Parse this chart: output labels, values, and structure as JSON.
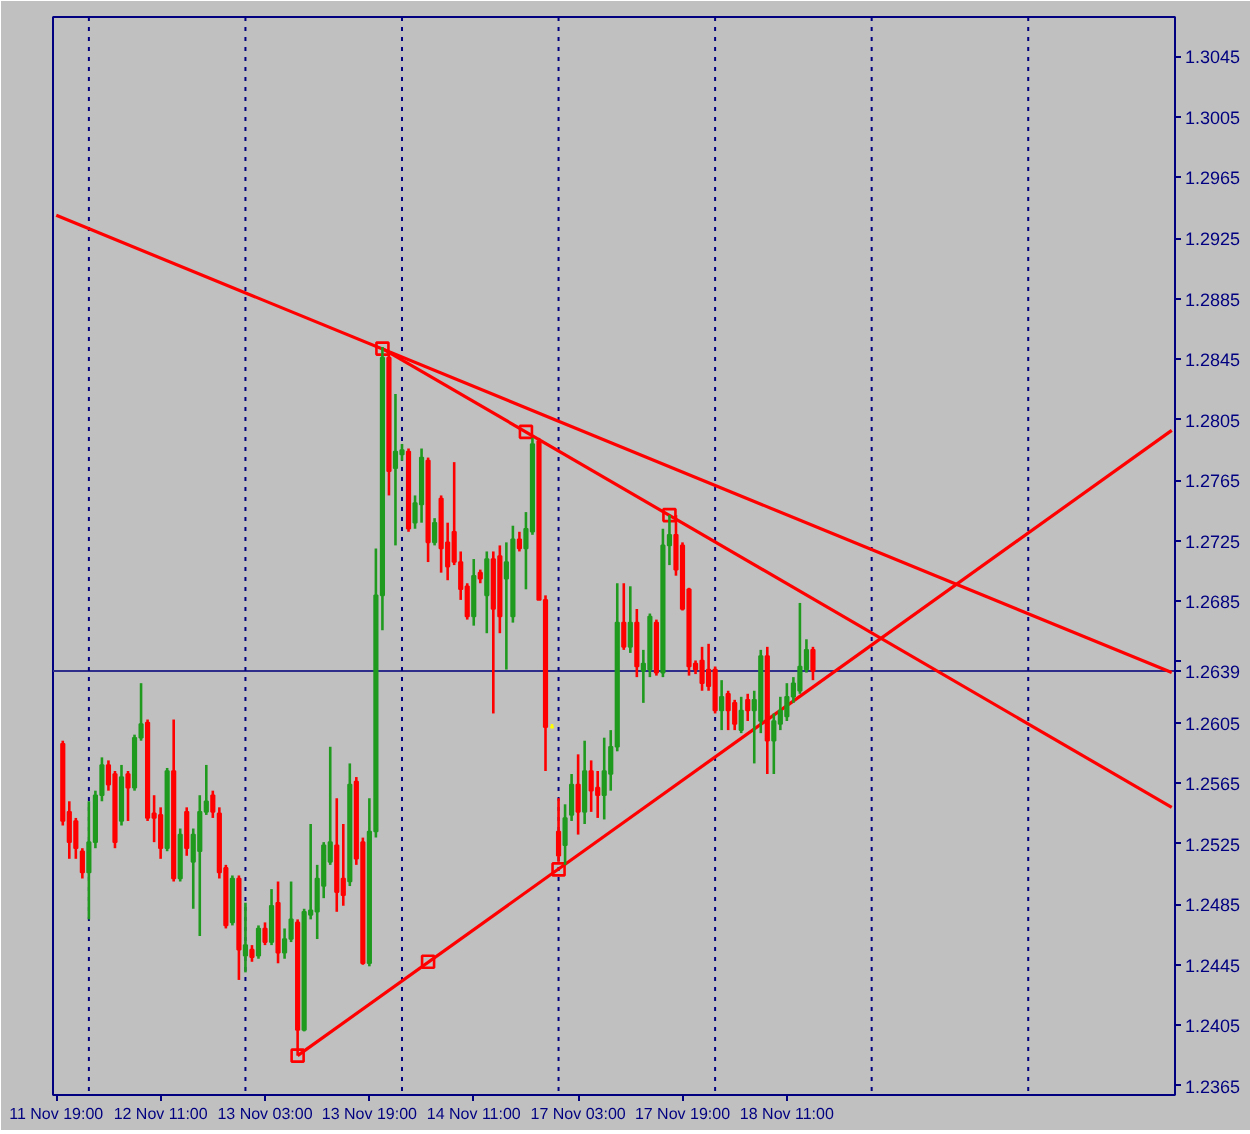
{
  "chart_data": {
    "type": "candlestick",
    "categories": [
      "11 Nov 19:00",
      null,
      null,
      null,
      null,
      null,
      null,
      null,
      null,
      null,
      null,
      null,
      null,
      null,
      null,
      null,
      "12 Nov 11:00",
      null,
      null,
      null,
      null,
      null,
      null,
      null,
      null,
      null,
      null,
      null,
      null,
      null,
      null,
      null,
      "13 Nov 03:00",
      null,
      null,
      null,
      null,
      null,
      null,
      null,
      null,
      null,
      null,
      null,
      null,
      null,
      null,
      null,
      "13 Nov 19:00",
      null,
      null,
      null,
      null,
      null,
      null,
      null,
      null,
      null,
      null,
      null,
      null,
      null,
      null,
      null,
      "14 Nov 11:00",
      null,
      null,
      null,
      null,
      null,
      null,
      null,
      null,
      null,
      null,
      null,
      null,
      null,
      null,
      null,
      "17 Nov 03:00",
      null,
      null,
      null,
      null,
      null,
      null,
      null,
      null,
      null,
      null,
      null,
      null,
      null,
      null,
      null,
      "17 Nov 19:00",
      null,
      null,
      null,
      null,
      null,
      null,
      null,
      null,
      null,
      null,
      null,
      null,
      null,
      null,
      null,
      "18 Nov 11:00",
      null,
      null,
      null,
      null,
      null,
      null,
      null,
      null,
      null,
      null,
      null,
      null,
      null,
      null,
      null,
      null,
      null,
      null,
      null,
      null,
      null,
      null,
      null,
      null,
      null,
      null,
      null,
      null,
      null,
      null,
      null,
      null,
      null,
      null,
      null,
      null,
      null,
      null,
      null,
      null,
      null,
      null,
      null,
      null,
      null,
      null,
      null,
      null,
      null,
      null,
      null,
      null,
      null,
      null,
      null,
      null,
      null,
      null,
      null
    ],
    "ohlc": [
      null,
      [
        1.2591,
        1.2593,
        1.2537,
        1.254
      ],
      [
        1.2546,
        1.2553,
        1.2515,
        1.2526
      ],
      [
        1.254,
        1.2542,
        1.2515,
        1.2522
      ],
      [
        1.252,
        1.2522,
        1.2502,
        1.2506
      ],
      [
        1.2506,
        1.2553,
        1.2475,
        1.2526
      ],
      [
        1.2526,
        1.256,
        1.2522,
        1.2557
      ],
      [
        1.2557,
        1.2582,
        1.2553,
        1.2577
      ],
      [
        1.2577,
        1.258,
        1.256,
        1.2564
      ],
      [
        1.2571,
        1.2573,
        1.2522,
        1.2526
      ],
      [
        1.254,
        1.2577,
        1.2537,
        1.2569
      ],
      [
        1.2571,
        1.2573,
        1.254,
        1.2562
      ],
      [
        1.2562,
        1.2597,
        1.256,
        1.2595
      ],
      [
        1.2595,
        1.2631,
        1.2593,
        1.2604
      ],
      [
        1.2605,
        1.2607,
        1.254,
        1.2542
      ],
      [
        1.2545,
        1.2557,
        1.2526,
        1.2542
      ],
      [
        1.2544,
        1.2549,
        1.2515,
        1.2522
      ],
      [
        1.2522,
        1.2575,
        1.252,
        1.2573
      ],
      [
        1.2573,
        1.2607,
        1.25,
        1.2502
      ],
      [
        1.2502,
        1.2535,
        1.25,
        1.2531
      ],
      [
        1.2546,
        1.2549,
        1.2517,
        1.2522
      ],
      [
        1.2513,
        1.2535,
        1.2482,
        1.2531
      ],
      [
        1.252,
        1.2557,
        1.2464,
        1.2546
      ],
      [
        1.2546,
        1.2577,
        1.2544,
        1.2553
      ],
      [
        1.2557,
        1.256,
        1.2542,
        1.2546
      ],
      [
        1.2545,
        1.2549,
        1.2502,
        1.2506
      ],
      [
        1.2509,
        1.2511,
        1.2469,
        1.2471
      ],
      [
        1.2473,
        1.2504,
        1.2471,
        1.2502
      ],
      [
        1.2502,
        1.2504,
        1.2435,
        1.2455
      ],
      [
        1.2451,
        1.2486,
        1.244,
        1.2458
      ],
      [
        1.2455,
        1.2458,
        1.2447,
        1.245
      ],
      [
        1.2451,
        1.2471,
        1.2449,
        1.2469
      ],
      [
        1.2469,
        1.2473,
        1.2458,
        1.246
      ],
      [
        1.246,
        1.2495,
        1.2458,
        1.2484
      ],
      [
        1.2486,
        1.25,
        1.2446,
        1.2453
      ],
      [
        1.2453,
        1.2469,
        1.2449,
        1.2462
      ],
      [
        1.2462,
        1.25,
        1.246,
        1.2475
      ],
      [
        1.2473,
        1.2475,
        1.2385,
        1.2402
      ],
      [
        1.2402,
        1.2482,
        1.2401,
        1.248
      ],
      [
        1.2478,
        1.2538,
        1.2475,
        1.2481
      ],
      [
        1.248,
        1.2511,
        1.2462,
        1.2502
      ],
      [
        1.2497,
        1.2526,
        1.2489,
        1.2524
      ],
      [
        1.2513,
        1.2589,
        1.2511,
        1.2526
      ],
      [
        1.2524,
        1.2555,
        1.248,
        1.2493
      ],
      [
        1.2502,
        1.2538,
        1.2484,
        1.2491
      ],
      [
        1.25,
        1.2578,
        1.2497,
        1.2564
      ],
      [
        1.2566,
        1.2569,
        1.2511,
        1.2515
      ],
      [
        1.2526,
        1.2529,
        1.2445,
        1.2446
      ],
      [
        1.2446,
        1.2555,
        1.2444,
        1.2533
      ],
      [
        1.2533,
        1.272,
        1.2529,
        1.2689
      ],
      [
        1.2689,
        1.2853,
        1.2666,
        1.2846
      ],
      [
        1.2846,
        1.2849,
        1.2755,
        1.2771
      ],
      [
        1.2773,
        1.2822,
        1.2722,
        1.2784
      ],
      [
        1.2782,
        1.2789,
        1.2778,
        1.2785
      ],
      [
        1.2784,
        1.2786,
        1.2731,
        1.2733
      ],
      [
        1.2737,
        1.2755,
        1.2733,
        1.275
      ],
      [
        1.2749,
        1.2786,
        1.2737,
        1.278
      ],
      [
        1.2778,
        1.278,
        1.2711,
        1.2724
      ],
      [
        1.2724,
        1.274,
        1.2722,
        1.2737
      ],
      [
        1.2753,
        1.2755,
        1.2704,
        1.272
      ],
      [
        1.2724,
        1.2737,
        1.2699,
        1.2708
      ],
      [
        1.2731,
        1.2777,
        1.2709,
        1.2711
      ],
      [
        1.2711,
        1.2718,
        1.2686,
        1.2693
      ],
      [
        1.2695,
        1.2697,
        1.2673,
        1.2675
      ],
      [
        1.2675,
        1.2713,
        1.2669,
        1.2702
      ],
      [
        1.2704,
        1.2706,
        1.2697,
        1.27
      ],
      [
        1.2689,
        1.2718,
        1.2664,
        1.2713
      ],
      [
        1.2713,
        1.2718,
        1.2611,
        1.268
      ],
      [
        1.2715,
        1.2722,
        1.2664,
        1.2675
      ],
      [
        1.27,
        1.2724,
        1.264,
        1.2711
      ],
      [
        1.2675,
        1.2735,
        1.2671,
        1.2726
      ],
      [
        1.2726,
        1.2731,
        1.2718,
        1.272
      ],
      [
        1.272,
        1.2744,
        1.2693,
        1.2733
      ],
      [
        1.2731,
        1.2793,
        1.2729,
        1.2789
      ],
      [
        1.2791,
        1.2793,
        1.2686,
        1.2686
      ],
      [
        1.2686,
        1.2689,
        1.2573,
        1.2602
      ],
      [
        1.2602,
        1.2604,
        1.2601,
        1.2602
      ],
      [
        1.2533,
        1.2555,
        1.2513,
        1.2517
      ],
      [
        1.2524,
        1.2551,
        1.2511,
        1.2542
      ],
      [
        1.2544,
        1.2571,
        1.254,
        1.2564
      ],
      [
        1.2564,
        1.2584,
        1.2531,
        1.2546
      ],
      [
        1.2546,
        1.2593,
        1.2538,
        1.2573
      ],
      [
        1.2573,
        1.258,
        1.2546,
        1.256
      ],
      [
        1.2562,
        1.2573,
        1.2542,
        1.2557
      ],
      [
        1.2557,
        1.2595,
        1.2541,
        1.2573
      ],
      [
        1.2571,
        1.26,
        1.256,
        1.2589
      ],
      [
        1.2589,
        1.2697,
        1.2586,
        1.2671
      ],
      [
        1.2671,
        1.2697,
        1.2653,
        1.2655
      ],
      [
        1.2655,
        1.2695,
        1.2651,
        1.2671
      ],
      [
        1.2671,
        1.268,
        1.2635,
        1.2642
      ],
      [
        1.2639,
        1.2653,
        1.2618,
        1.2644
      ],
      [
        1.264,
        1.2677,
        1.2635,
        1.2675
      ],
      [
        1.2671,
        1.2673,
        1.2636,
        1.2638
      ],
      [
        1.2638,
        1.2733,
        1.2635,
        1.2722
      ],
      [
        1.2722,
        1.2742,
        1.2709,
        1.2729
      ],
      [
        1.2729,
        1.2742,
        1.2702,
        1.2706
      ],
      [
        1.2722,
        1.2724,
        1.2679,
        1.268
      ],
      [
        1.2693,
        1.2694,
        1.2636,
        1.2642
      ],
      [
        1.2644,
        1.2646,
        1.2637,
        1.264
      ],
      [
        1.2646,
        1.2655,
        1.2626,
        1.2631
      ],
      [
        1.264,
        1.2657,
        1.2626,
        1.2629
      ],
      [
        1.264,
        1.2642,
        1.2611,
        1.2613
      ],
      [
        1.2613,
        1.2633,
        1.26,
        1.2622
      ],
      [
        1.2624,
        1.2626,
        1.26,
        1.2613
      ],
      [
        1.2618,
        1.262,
        1.26,
        1.2604
      ],
      [
        1.26,
        1.2622,
        1.2598,
        1.2613
      ],
      [
        1.262,
        1.2624,
        1.2606,
        1.2613
      ],
      [
        1.2613,
        1.2626,
        1.2578,
        1.262
      ],
      [
        1.2606,
        1.2653,
        1.2598,
        1.2649
      ],
      [
        1.2649,
        1.2655,
        1.2571,
        1.2593
      ],
      [
        1.2593,
        1.2611,
        1.2571,
        1.2606
      ],
      [
        1.2604,
        1.2622,
        1.26,
        1.2613
      ],
      [
        1.2609,
        1.2631,
        1.2606,
        1.2622
      ],
      [
        1.2622,
        1.2635,
        1.2618,
        1.2631
      ],
      [
        1.2626,
        1.2684,
        1.2624,
        1.2642
      ],
      [
        1.264,
        1.266,
        1.2638,
        1.2653
      ],
      [
        1.2653,
        1.2655,
        1.2633,
        1.2639
      ],
      null,
      null,
      null,
      null,
      null,
      null,
      null,
      null,
      null,
      null,
      null,
      null,
      null,
      null,
      null,
      null,
      null,
      null,
      null,
      null,
      null,
      null,
      null,
      null,
      null,
      null,
      null,
      null,
      null,
      null,
      null,
      null,
      null,
      null,
      null,
      null,
      null,
      null,
      null,
      null,
      null,
      null,
      null,
      null,
      null,
      null,
      null,
      null,
      null,
      null,
      null,
      null,
      null,
      null,
      null
    ],
    "colors": [
      null,
      "#ff0000",
      "#ff0000",
      "#ff0000",
      "#ff0000",
      "#1f9a1f",
      "#1f9a1f",
      "#1f9a1f",
      "#ff0000",
      "#ff0000",
      "#1f9a1f",
      "#ff0000",
      "#1f9a1f",
      "#1f9a1f",
      "#ff0000",
      "#ff0000",
      "#ff0000",
      "#1f9a1f",
      "#ff0000",
      "#1f9a1f",
      "#ff0000",
      "#1f9a1f",
      "#1f9a1f",
      "#1f9a1f",
      "#ff0000",
      "#ff0000",
      "#ff0000",
      "#1f9a1f",
      "#ff0000",
      "#1f9a1f",
      "#ff0000",
      "#1f9a1f",
      "#ff0000",
      "#1f9a1f",
      "#ff0000",
      "#1f9a1f",
      "#1f9a1f",
      "#ff0000",
      "#1f9a1f",
      "#1f9a1f",
      "#1f9a1f",
      "#1f9a1f",
      "#1f9a1f",
      "#ff0000",
      "#ff0000",
      "#1f9a1f",
      "#ff0000",
      "#ff0000",
      "#1f9a1f",
      "#1f9a1f",
      "#1f9a1f",
      "#ff0000",
      "#1f9a1f",
      "#1f9a1f",
      "#ff0000",
      "#1f9a1f",
      "#1f9a1f",
      "#ff0000",
      "#1f9a1f",
      "#ff0000",
      "#ff0000",
      "#ff0000",
      "#ff0000",
      "#ff0000",
      "#1f9a1f",
      "#ff0000",
      "#1f9a1f",
      "#ff0000",
      "#ff0000",
      "#1f9a1f",
      "#1f9a1f",
      "#ff0000",
      "#1f9a1f",
      "#1f9a1f",
      "#ff0000",
      "#ff0000",
      "#ffff00",
      "#ff0000",
      "#1f9a1f",
      "#1f9a1f",
      "#ff0000",
      "#1f9a1f",
      "#ff0000",
      "#ff0000",
      "#1f9a1f",
      "#1f9a1f",
      "#1f9a1f",
      "#ff0000",
      "#1f9a1f",
      "#ff0000",
      "#1f9a1f",
      "#1f9a1f",
      "#ff0000",
      "#1f9a1f",
      "#1f9a1f",
      "#ff0000",
      "#ff0000",
      "#ff0000",
      "#ff0000",
      "#ff0000",
      "#ff0000",
      "#ff0000",
      "#1f9a1f",
      "#ff0000",
      "#ff0000",
      "#1f9a1f",
      "#ff0000",
      "#1f9a1f",
      "#1f9a1f",
      "#ff0000",
      "#1f9a1f",
      "#1f9a1f",
      "#1f9a1f",
      "#1f9a1f",
      "#1f9a1f",
      "#1f9a1f",
      "#ff0000",
      null,
      null,
      null,
      null,
      null,
      null,
      null,
      null,
      null,
      null,
      null,
      null,
      null,
      null,
      null,
      null,
      null,
      null,
      null,
      null,
      null,
      null,
      null,
      null,
      null,
      null,
      null,
      null,
      null,
      null,
      null,
      null,
      null,
      null,
      null,
      null,
      null,
      null,
      null,
      null,
      null,
      null,
      null,
      null,
      null,
      null,
      null,
      null,
      null,
      null,
      null,
      null,
      null,
      null,
      null
    ],
    "ylim": [
      1.2359,
      1.3071
    ],
    "yticks": [
      1.2365,
      1.2405,
      1.2445,
      1.2485,
      1.2525,
      1.2565,
      1.2605,
      {
        "value": 1.2645,
        "label": null
      },
      1.2685,
      1.2725,
      1.2765,
      1.2805,
      1.2845,
      1.2885,
      1.2925,
      1.2965,
      1.3005,
      1.3045
    ],
    "series": [
      {
        "type": "line",
        "color": "#ff0000",
        "values": [
          1.294,
          null,
          null,
          null,
          null,
          null,
          null,
          null,
          null,
          null,
          null,
          null,
          null,
          null,
          null,
          null,
          null,
          null,
          null,
          null,
          null,
          null,
          null,
          null,
          null,
          null,
          null,
          null,
          null,
          null,
          null,
          null,
          null,
          null,
          null,
          null,
          null,
          null,
          null,
          null,
          null,
          null,
          null,
          null,
          null,
          null,
          null,
          null,
          null,
          null,
          null,
          null,
          null,
          null,
          null,
          null,
          null,
          null,
          null,
          null,
          null,
          null,
          null,
          null,
          null,
          null,
          null,
          null,
          null,
          null,
          null,
          null,
          null,
          null,
          null,
          null,
          null,
          null,
          null,
          null,
          null,
          null,
          null,
          null,
          null,
          null,
          null,
          null,
          null,
          null,
          null,
          null,
          null,
          null,
          null,
          null,
          null,
          null,
          null,
          null,
          null,
          null,
          null,
          null,
          null,
          null,
          null,
          null,
          null,
          null,
          null,
          null,
          null,
          null,
          null,
          null,
          null,
          null,
          null,
          null,
          null,
          null,
          null,
          null,
          null,
          null,
          null,
          null,
          null,
          null,
          null,
          null,
          null,
          null,
          null,
          null,
          null,
          null,
          null,
          null,
          null,
          null,
          null,
          null,
          null,
          null,
          null,
          null,
          null,
          null,
          null,
          null,
          null,
          null,
          null,
          null,
          null,
          null,
          null,
          null,
          null,
          null,
          null,
          null,
          null,
          null,
          null,
          null,
          null,
          null,
          null,
          1.2638
        ]
      },
      {
        "type": "line",
        "color": "#ff0000",
        "values": [
          null,
          null,
          null,
          null,
          null,
          null,
          null,
          null,
          null,
          null,
          null,
          null,
          null,
          null,
          null,
          null,
          null,
          null,
          null,
          null,
          null,
          null,
          null,
          null,
          null,
          null,
          null,
          null,
          null,
          null,
          null,
          null,
          null,
          null,
          null,
          null,
          null,
          null,
          null,
          null,
          null,
          null,
          null,
          null,
          null,
          null,
          null,
          null,
          null,
          null,
          1.2852,
          null,
          null,
          null,
          null,
          null,
          null,
          null,
          null,
          null,
          null,
          null,
          null,
          null,
          null,
          null,
          null,
          null,
          null,
          null,
          null,
          null,
          null,
          null,
          null,
          null,
          null,
          null,
          null,
          null,
          null,
          null,
          null,
          null,
          null,
          null,
          null,
          null,
          null,
          null,
          null,
          null,
          null,
          null,
          null,
          null,
          null,
          null,
          null,
          null,
          null,
          null,
          null,
          null,
          null,
          null,
          null,
          null,
          null,
          null,
          null,
          null,
          null,
          null,
          null,
          null,
          null,
          null,
          null,
          null,
          null,
          null,
          null,
          null,
          null,
          null,
          null,
          null,
          null,
          null,
          null,
          null,
          null,
          null,
          null,
          null,
          null,
          null,
          null,
          null,
          null,
          null,
          null,
          null,
          null,
          null,
          null,
          null,
          null,
          null,
          null,
          null,
          null,
          null,
          null,
          null,
          null,
          null,
          null,
          null,
          null,
          null,
          null,
          null,
          null,
          null,
          null,
          null,
          null,
          null,
          null,
          1.2549
        ]
      },
      {
        "type": "line",
        "color": "#ff0000",
        "values": [
          null,
          null,
          null,
          null,
          null,
          null,
          null,
          null,
          null,
          null,
          null,
          null,
          null,
          null,
          null,
          null,
          null,
          null,
          null,
          null,
          null,
          null,
          null,
          null,
          null,
          null,
          null,
          null,
          null,
          null,
          null,
          null,
          null,
          null,
          null,
          null,
          null,
          1.2385,
          null,
          null,
          null,
          null,
          null,
          null,
          null,
          null,
          null,
          null,
          null,
          null,
          null,
          null,
          null,
          null,
          null,
          null,
          null,
          null,
          null,
          null,
          null,
          null,
          null,
          null,
          null,
          null,
          null,
          null,
          null,
          null,
          null,
          null,
          null,
          null,
          null,
          null,
          null,
          null,
          null,
          null,
          null,
          null,
          null,
          null,
          null,
          null,
          null,
          null,
          null,
          null,
          null,
          null,
          null,
          null,
          null,
          null,
          null,
          null,
          null,
          null,
          null,
          null,
          null,
          null,
          null,
          null,
          null,
          null,
          null,
          null,
          null,
          null,
          null,
          null,
          null,
          null,
          null,
          null,
          null,
          null,
          null,
          null,
          null,
          null,
          null,
          null,
          null,
          null,
          null,
          null,
          null,
          null,
          null,
          null,
          null,
          null,
          null,
          null,
          null,
          null,
          null,
          null,
          null,
          null,
          null,
          null,
          null,
          null,
          null,
          null,
          null,
          null,
          null,
          null,
          null,
          null,
          null,
          null,
          null,
          null,
          null,
          null,
          null,
          null,
          null,
          null,
          null,
          null,
          null,
          null,
          null,
          1.2798
        ]
      },
      {
        "type": "scatter",
        "color": "#ff0000",
        "marker": "square",
        "values": [
          null,
          null,
          null,
          null,
          null,
          null,
          null,
          null,
          null,
          null,
          null,
          null,
          null,
          null,
          null,
          null,
          null,
          null,
          null,
          null,
          null,
          null,
          null,
          null,
          null,
          null,
          null,
          null,
          null,
          null,
          null,
          null,
          null,
          null,
          null,
          null,
          null,
          1.2385,
          null,
          null,
          null,
          null,
          null,
          null,
          null,
          null,
          null,
          null,
          null,
          null,
          1.2852,
          null,
          null,
          null,
          null,
          null,
          null,
          1.2447,
          null,
          null,
          null,
          null,
          null,
          null,
          null,
          null,
          null,
          null,
          null,
          null,
          null,
          null,
          1.2797,
          null,
          null,
          null,
          null,
          1.2508,
          null,
          null,
          null,
          null,
          null,
          null,
          null,
          null,
          null,
          null,
          null,
          null,
          null,
          null,
          null,
          null,
          1.2742,
          null,
          null,
          null,
          null,
          null,
          null,
          null,
          null,
          null,
          null,
          null,
          null,
          null,
          null,
          null,
          null,
          null,
          null,
          null,
          null,
          null,
          null,
          null,
          null,
          null,
          null,
          null,
          null,
          null,
          null,
          null,
          null,
          null,
          null,
          null,
          null,
          null,
          null,
          null,
          null,
          null,
          null,
          null,
          null,
          null,
          null,
          null,
          null,
          null,
          null,
          null,
          null,
          null,
          null,
          null,
          null,
          null,
          null,
          null,
          null,
          null,
          null,
          null,
          null,
          null,
          null,
          null,
          null,
          null,
          null,
          null,
          null,
          null,
          null,
          null,
          null,
          null
        ]
      }
    ],
    "ref_lines": [
      {
        "axis": "y",
        "value": 1.2639,
        "label": "1.2639",
        "color": "#2e2e8a"
      }
    ]
  }
}
